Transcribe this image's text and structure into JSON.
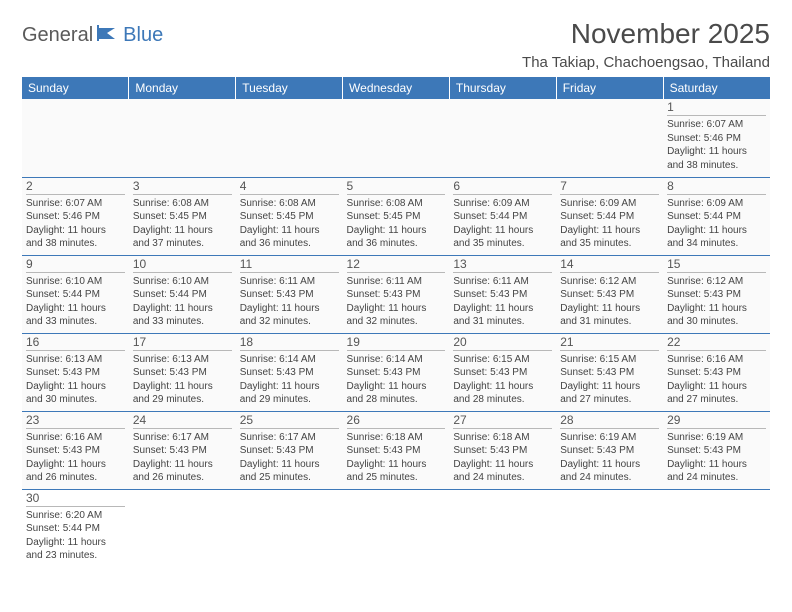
{
  "logo": {
    "part1": "General",
    "part2": "Blue"
  },
  "title": "November 2025",
  "location": "Tha Takiap, Chachoengsao, Thailand",
  "header_color": "#3d78b8",
  "divider_color": "#3d78b8",
  "day_headers": [
    "Sunday",
    "Monday",
    "Tuesday",
    "Wednesday",
    "Thursday",
    "Friday",
    "Saturday"
  ],
  "weeks": [
    [
      null,
      null,
      null,
      null,
      null,
      null,
      {
        "n": "1",
        "sr": "6:07 AM",
        "ss": "5:46 PM",
        "dl": "11 hours and 38 minutes."
      }
    ],
    [
      {
        "n": "2",
        "sr": "6:07 AM",
        "ss": "5:46 PM",
        "dl": "11 hours and 38 minutes."
      },
      {
        "n": "3",
        "sr": "6:08 AM",
        "ss": "5:45 PM",
        "dl": "11 hours and 37 minutes."
      },
      {
        "n": "4",
        "sr": "6:08 AM",
        "ss": "5:45 PM",
        "dl": "11 hours and 36 minutes."
      },
      {
        "n": "5",
        "sr": "6:08 AM",
        "ss": "5:45 PM",
        "dl": "11 hours and 36 minutes."
      },
      {
        "n": "6",
        "sr": "6:09 AM",
        "ss": "5:44 PM",
        "dl": "11 hours and 35 minutes."
      },
      {
        "n": "7",
        "sr": "6:09 AM",
        "ss": "5:44 PM",
        "dl": "11 hours and 35 minutes."
      },
      {
        "n": "8",
        "sr": "6:09 AM",
        "ss": "5:44 PM",
        "dl": "11 hours and 34 minutes."
      }
    ],
    [
      {
        "n": "9",
        "sr": "6:10 AM",
        "ss": "5:44 PM",
        "dl": "11 hours and 33 minutes."
      },
      {
        "n": "10",
        "sr": "6:10 AM",
        "ss": "5:44 PM",
        "dl": "11 hours and 33 minutes."
      },
      {
        "n": "11",
        "sr": "6:11 AM",
        "ss": "5:43 PM",
        "dl": "11 hours and 32 minutes."
      },
      {
        "n": "12",
        "sr": "6:11 AM",
        "ss": "5:43 PM",
        "dl": "11 hours and 32 minutes."
      },
      {
        "n": "13",
        "sr": "6:11 AM",
        "ss": "5:43 PM",
        "dl": "11 hours and 31 minutes."
      },
      {
        "n": "14",
        "sr": "6:12 AM",
        "ss": "5:43 PM",
        "dl": "11 hours and 31 minutes."
      },
      {
        "n": "15",
        "sr": "6:12 AM",
        "ss": "5:43 PM",
        "dl": "11 hours and 30 minutes."
      }
    ],
    [
      {
        "n": "16",
        "sr": "6:13 AM",
        "ss": "5:43 PM",
        "dl": "11 hours and 30 minutes."
      },
      {
        "n": "17",
        "sr": "6:13 AM",
        "ss": "5:43 PM",
        "dl": "11 hours and 29 minutes."
      },
      {
        "n": "18",
        "sr": "6:14 AM",
        "ss": "5:43 PM",
        "dl": "11 hours and 29 minutes."
      },
      {
        "n": "19",
        "sr": "6:14 AM",
        "ss": "5:43 PM",
        "dl": "11 hours and 28 minutes."
      },
      {
        "n": "20",
        "sr": "6:15 AM",
        "ss": "5:43 PM",
        "dl": "11 hours and 28 minutes."
      },
      {
        "n": "21",
        "sr": "6:15 AM",
        "ss": "5:43 PM",
        "dl": "11 hours and 27 minutes."
      },
      {
        "n": "22",
        "sr": "6:16 AM",
        "ss": "5:43 PM",
        "dl": "11 hours and 27 minutes."
      }
    ],
    [
      {
        "n": "23",
        "sr": "6:16 AM",
        "ss": "5:43 PM",
        "dl": "11 hours and 26 minutes."
      },
      {
        "n": "24",
        "sr": "6:17 AM",
        "ss": "5:43 PM",
        "dl": "11 hours and 26 minutes."
      },
      {
        "n": "25",
        "sr": "6:17 AM",
        "ss": "5:43 PM",
        "dl": "11 hours and 25 minutes."
      },
      {
        "n": "26",
        "sr": "6:18 AM",
        "ss": "5:43 PM",
        "dl": "11 hours and 25 minutes."
      },
      {
        "n": "27",
        "sr": "6:18 AM",
        "ss": "5:43 PM",
        "dl": "11 hours and 24 minutes."
      },
      {
        "n": "28",
        "sr": "6:19 AM",
        "ss": "5:43 PM",
        "dl": "11 hours and 24 minutes."
      },
      {
        "n": "29",
        "sr": "6:19 AM",
        "ss": "5:43 PM",
        "dl": "11 hours and 24 minutes."
      }
    ],
    [
      {
        "n": "30",
        "sr": "6:20 AM",
        "ss": "5:44 PM",
        "dl": "11 hours and 23 minutes."
      },
      null,
      null,
      null,
      null,
      null,
      null
    ]
  ],
  "labels": {
    "sunrise": "Sunrise:",
    "sunset": "Sunset:",
    "daylight": "Daylight:"
  }
}
